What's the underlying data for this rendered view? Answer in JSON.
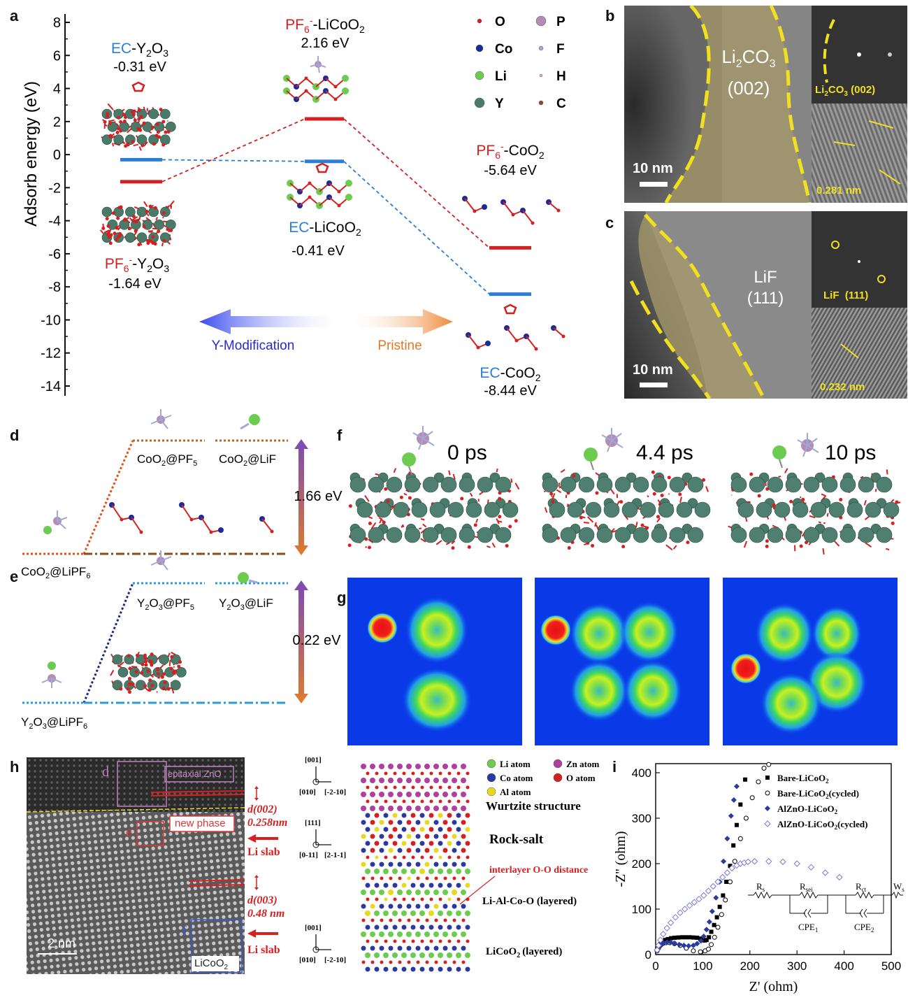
{
  "panel_letters": {
    "a": "a",
    "b": "b",
    "c": "c",
    "d": "d",
    "e": "e",
    "f": "f",
    "g": "g",
    "h": "h",
    "i": "i"
  },
  "panel_a": {
    "ylabel": "Adsorb energy (eV)",
    "yticks": [
      "8",
      "6",
      "4",
      "2",
      "0",
      "-2",
      "-4",
      "-6",
      "-8",
      "-10",
      "-12",
      "-14"
    ],
    "ylim": [
      -14,
      8
    ],
    "levels": [
      {
        "name": "EC-Y2O3",
        "energy": -0.31,
        "color": "#2a7fd4"
      },
      {
        "name": "PF6- -Y2O3",
        "energy": -1.64,
        "color": "#d42020"
      },
      {
        "name": "PF6- -LiCoO2",
        "energy": 2.16,
        "color": "#d42020"
      },
      {
        "name": "EC-LiCoO2",
        "energy": -0.41,
        "color": "#2a7fd4"
      },
      {
        "name": "PF6- -CoO2",
        "energy": -5.64,
        "color": "#d42020"
      },
      {
        "name": "EC-CoO2",
        "energy": -8.44,
        "color": "#2a7fd4"
      }
    ],
    "labels": {
      "ec_y2o3_a": "EC",
      "ec_y2o3_b": "-Y",
      "ec_y2o3_c": "O",
      "ec_y2o3_e": "-0.31 eV",
      "pf_licoo2_a": "PF",
      "pf_licoo2_b": "-LiCoO",
      "pf_licoo2_e": "2.16 eV",
      "ec_licoo2_a": "EC",
      "ec_licoo2_b": "-LiCoO",
      "ec_licoo2_e": "-0.41 eV",
      "pf_y2o3_a": "PF",
      "pf_y2o3_b": "-Y",
      "pf_y2o3_c": "O",
      "pf_y2o3_e": "-1.64 eV",
      "pf_coo2_a": "PF",
      "pf_coo2_b": "-CoO",
      "pf_coo2_e": "-5.64 eV",
      "ec_coo2_a": "EC",
      "ec_coo2_b": "-CoO",
      "ec_coo2_e": "-8.44 eV",
      "sub2": "2",
      "sub3": "3",
      "sub6": "6",
      "supminus": "-"
    },
    "legend": [
      {
        "sym": "O",
        "color": "#d42020",
        "r": 3
      },
      {
        "sym": "P",
        "color": "#b48cb4",
        "r": 7
      },
      {
        "sym": "Co",
        "color": "#1a2a9a",
        "r": 5
      },
      {
        "sym": "F",
        "color": "#a0a8d8",
        "r": 3
      },
      {
        "sym": "Li",
        "color": "#6ccc50",
        "r": 6
      },
      {
        "sym": "H",
        "color": "#f0b0b0",
        "r": 2
      },
      {
        "sym": "Y",
        "color": "#4a7a6a",
        "r": 7
      },
      {
        "sym": "C",
        "color": "#8a4a2a",
        "r": 3
      }
    ],
    "arrows": {
      "left": "Y-Modification",
      "right": "Pristine"
    }
  },
  "panel_b": {
    "title_a": "Li",
    "title_b": "CO",
    "title_c": "(002)",
    "fft": "Li2CO3 (002)",
    "fft_a": "Li",
    "fft_b": "CO",
    "fft_c": "(002)",
    "spacing": "0.281 nm",
    "scale": "10 nm",
    "sub2": "2",
    "sub3": "3"
  },
  "panel_c": {
    "title_a": "LiF",
    "title_b": "(111)",
    "fft": "LiF  (111)",
    "spacing": "0.232 nm",
    "scale": "10 nm"
  },
  "panel_d": {
    "energy": "1.66 eV",
    "left": "CoO",
    "left_b": "@LiPF",
    "right1": "CoO",
    "right1_b": "@PF",
    "right2": "CoO",
    "right2_b": "@LiF",
    "sub2": "2",
    "sub5": "5",
    "sub6": "6"
  },
  "panel_e": {
    "energy": "0.22 eV",
    "left": "Y",
    "left_b": "O",
    "left_c": "@LiPF",
    "right1": "Y",
    "right1_b": "O",
    "right1_c": "@PF",
    "right2": "Y",
    "right2_b": "O",
    "right2_c": "@LiF",
    "sub2": "2",
    "sub3": "3",
    "sub5": "5",
    "sub6": "6"
  },
  "panel_f": {
    "times": [
      "0 ps",
      "4.4 ps",
      "10 ps"
    ]
  },
  "panel_h": {
    "box_d": "d",
    "box_e": "e",
    "box_f": "f",
    "epitaxial": "epitaxial ZnO",
    "new_phase": "new phase",
    "li_slab1": "Li slab",
    "li_slab2": "Li slab",
    "d002": "d(002)",
    "d002_v": "0.258nm",
    "d003": "d(003)",
    "d003_v": "0.48 nm",
    "scale": "2 nm",
    "licoo2": "LiCoO",
    "axes": [
      {
        "up": "[001]",
        "left": "[010]",
        "right": "[-2-10]"
      },
      {
        "up": "[111]",
        "left": "[0-11]",
        "right": "[2-1-1]"
      },
      {
        "up": "[001]",
        "left": "[010]",
        "right": "[-2-10]"
      }
    ],
    "structures": {
      "wurtzite": "Wurtzite structure",
      "rocksalt": "Rock-salt",
      "interlayer": "interlayer O-O distance",
      "layered": "Li-Al-Co-O (layered)",
      "licoo2": "LiCoO",
      "licoo2_b": "(layered)"
    },
    "legend": [
      {
        "name": "Li atom",
        "color": "#6ccc50"
      },
      {
        "name": "Zn atom",
        "color": "#b040a0"
      },
      {
        "name": "Co atom",
        "color": "#2a3aa0"
      },
      {
        "name": "O atom",
        "color": "#d42020"
      },
      {
        "name": "Al atom",
        "color": "#e8d820"
      }
    ]
  },
  "chart_data": {
    "type": "scatter",
    "xlabel": "Z' (ohm)",
    "ylabel": "-Z'' (ohm)",
    "xlim": [
      0,
      500
    ],
    "ylim": [
      0,
      420
    ],
    "xticks": [
      0,
      100,
      200,
      300,
      400,
      500
    ],
    "yticks": [
      0,
      100,
      200,
      300,
      400
    ],
    "legend_position": "top-right",
    "series": [
      {
        "name": "Bare-LiCoO2",
        "marker": "square-filled",
        "color": "#000000",
        "x": [
          3,
          6,
          10,
          15,
          20,
          26,
          33,
          40,
          48,
          56,
          64,
          72,
          80,
          88,
          95,
          100,
          104,
          108,
          113,
          118,
          124,
          130,
          136,
          143,
          150,
          158,
          165,
          172,
          180,
          190
        ],
        "y": [
          10,
          17,
          23,
          28,
          32,
          34,
          36,
          37,
          37.5,
          38,
          38,
          38,
          37.5,
          37,
          35,
          33,
          31,
          32,
          38,
          50,
          65,
          82,
          105,
          130,
          160,
          195,
          240,
          285,
          330,
          385
        ]
      },
      {
        "name": "Bare-LiCoO2(cycled)",
        "marker": "circle-open",
        "color": "#000000",
        "x": [
          3,
          6,
          10,
          15,
          22,
          30,
          40,
          52,
          65,
          80,
          95,
          105,
          112,
          118,
          125,
          132,
          140,
          148,
          158,
          168,
          180,
          192,
          205,
          218,
          230,
          240
        ],
        "y": [
          8,
          14,
          20,
          24,
          26,
          26,
          24,
          20,
          14,
          8,
          6,
          8,
          12,
          22,
          38,
          60,
          88,
          120,
          160,
          205,
          255,
          300,
          345,
          380,
          410,
          418
        ]
      },
      {
        "name": "AlZnO-LiCoO2",
        "marker": "diamond-filled",
        "color": "#2a3aa0",
        "x": [
          3,
          6,
          10,
          16,
          24,
          32,
          40,
          50,
          60,
          70,
          80,
          88,
          96,
          102,
          108,
          114,
          120,
          128,
          136,
          144,
          152,
          160,
          166,
          172
        ],
        "y": [
          8,
          14,
          20,
          25,
          27,
          27,
          25,
          22,
          20,
          19,
          20,
          24,
          30,
          40,
          55,
          72,
          95,
          125,
          160,
          205,
          255,
          305,
          340,
          370
        ]
      },
      {
        "name": "AlZnO-LiCoO2(cycled)",
        "marker": "diamond-open",
        "color": "#7a7ad8",
        "x": [
          3,
          6,
          10,
          16,
          24,
          32,
          42,
          52,
          62,
          72,
          82,
          92,
          102,
          112,
          122,
          132,
          142,
          152,
          162,
          172,
          180,
          188,
          196,
          210,
          240,
          270,
          300,
          330,
          360,
          390
        ],
        "y": [
          10,
          20,
          32,
          45,
          58,
          70,
          82,
          92,
          100,
          108,
          115,
          122,
          130,
          140,
          150,
          160,
          170,
          180,
          190,
          196,
          200,
          202,
          204,
          205,
          205,
          204,
          200,
          192,
          180,
          170
        ]
      }
    ],
    "circuit": {
      "rs": "R",
      "rs_sub": "s",
      "rsei": "R",
      "rsei_sub": "sei",
      "rct": "R",
      "rct_sub": "ct",
      "w": "W",
      "w_sub": "s",
      "cpe1": "CPE",
      "cpe1_sub": "1",
      "cpe2": "CPE",
      "cpe2_sub": "2"
    },
    "legend_entries": [
      {
        "a": "Bare-LiCoO",
        "b": "2",
        "c": ""
      },
      {
        "a": "Bare-LiCoO",
        "b": "2",
        "c": "(cycled)"
      },
      {
        "a": "AlZnO-LiCoO",
        "b": "2",
        "c": ""
      },
      {
        "a": "AlZnO-LiCoO",
        "b": "2",
        "c": "(cycled)"
      }
    ]
  }
}
